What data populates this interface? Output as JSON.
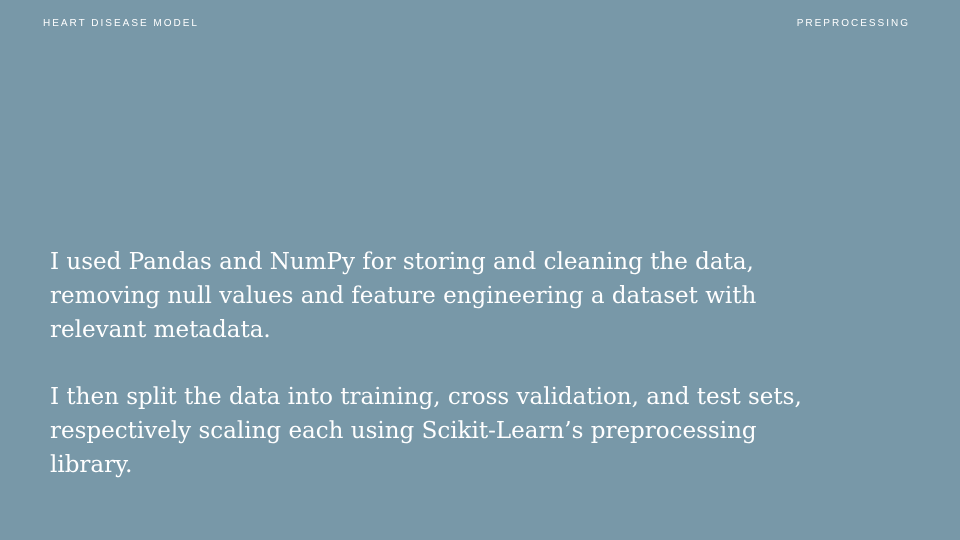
{
  "header": {
    "title": "HEART DISEASE MODEL",
    "section": "PREPROCESSING"
  },
  "body": {
    "paragraphs": [
      "I used Pandas and NumPy for storing and cleaning the data, removing null values and feature engineering a dataset with relevant metadata.",
      "I then split the data into training, cross validation, and test sets, respectively scaling each using Scikit-Learn’s preprocessing library."
    ]
  },
  "colors": {
    "background": "#7898a8",
    "text": "#ffffff"
  }
}
